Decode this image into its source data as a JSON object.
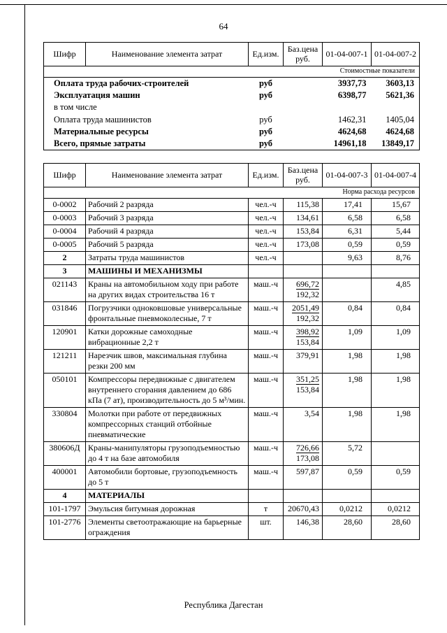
{
  "page": {
    "number": "64",
    "footer": "Республика Дагестан"
  },
  "table1": {
    "headers": [
      "Шифр",
      "Наименование элемента затрат",
      "Ед.изм.",
      "Баз.цена руб.",
      "01-04-007-1",
      "01-04-007-2"
    ],
    "subheader": "Стоимостные показатели",
    "rows": [
      {
        "name": "Оплата труда рабочих-строителей",
        "unit": "руб",
        "v1": "3937,73",
        "v2": "3603,13",
        "bold": true
      },
      {
        "name": "Эксплуатация машин",
        "unit": "руб",
        "v1": "6398,77",
        "v2": "5621,36",
        "bold": true
      },
      {
        "name": "в том числе",
        "unit": "",
        "v1": "",
        "v2": "",
        "bold": false
      },
      {
        "name": "Оплата труда машинистов",
        "unit": "руб",
        "v1": "1462,31",
        "v2": "1405,04",
        "bold": false
      },
      {
        "name": "Материальные ресурсы",
        "unit": "руб",
        "v1": "4624,68",
        "v2": "4624,68",
        "bold": true
      },
      {
        "name": "Всего, прямые затраты",
        "unit": "руб",
        "v1": "14961,18",
        "v2": "13849,17",
        "bold": true
      }
    ]
  },
  "table2": {
    "headers": [
      "Шифр",
      "Наименование элемента затрат",
      "Ед.изм.",
      "Баз.цена руб.",
      "01-04-007-3",
      "01-04-007-4"
    ],
    "subheader": "Норма расхода ресурсов",
    "rows": [
      {
        "code": "0-0002",
        "name": "Рабочий 2 разряда",
        "unit": "чел.-ч",
        "price": "115,38",
        "v1": "17,41",
        "v2": "15,67"
      },
      {
        "code": "0-0003",
        "name": "Рабочий 3 разряда",
        "unit": "чел.-ч",
        "price": "134,61",
        "v1": "6,58",
        "v2": "6,58"
      },
      {
        "code": "0-0004",
        "name": "Рабочий 4 разряда",
        "unit": "чел.-ч",
        "price": "153,84",
        "v1": "6,31",
        "v2": "5,44"
      },
      {
        "code": "0-0005",
        "name": "Рабочий 5 разряда",
        "unit": "чел.-ч",
        "price": "173,08",
        "v1": "0,59",
        "v2": "0,59"
      },
      {
        "code": "2",
        "name": "Затраты труда машинистов",
        "unit": "чел.-ч",
        "price": "",
        "v1": "9,63",
        "v2": "8,76",
        "section": true
      },
      {
        "code": "3",
        "name": "МАШИНЫ И МЕХАНИЗМЫ",
        "unit": "",
        "price": "",
        "v1": "",
        "v2": "",
        "section": true,
        "nameBold": true
      },
      {
        "code": "021143",
        "name": "Краны на автомобильном ходу при работе на других видах строительства 16 т",
        "unit": "маш.-ч",
        "price": "696,72",
        "price2": "192,32",
        "v1": "",
        "v2": "4,85"
      },
      {
        "code": "031846",
        "name": "Погрузчики одноковшовые универсальные фронтальные пневмоколесные, 7 т",
        "unit": "маш.-ч",
        "price": "2051,49",
        "price2": "192,32",
        "v1": "0,84",
        "v2": "0,84"
      },
      {
        "code": "120901",
        "name": "Катки дорожные самоходные вибрационные 2,2 т",
        "unit": "маш.-ч",
        "price": "398,92",
        "price2": "153,84",
        "v1": "1,09",
        "v2": "1,09"
      },
      {
        "code": "121211",
        "name": "Нарезчик швов, максимальная глубина резки 200 мм",
        "unit": "маш.-ч",
        "price": "379,91",
        "v1": "1,98",
        "v2": "1,98"
      },
      {
        "code": "050101",
        "name": "Компрессоры передвижные с двигателем внутреннего сгорания давлением до 686 кПа (7 ат), производительность до 5 м³/мин.",
        "unit": "маш.-ч",
        "price": "351,25",
        "price2": "153,84",
        "v1": "1,98",
        "v2": "1,98"
      },
      {
        "code": "330804",
        "name": "Молотки при работе от передвижных компрессорных станций отбойные пневматические",
        "unit": "маш.-ч",
        "price": "3,54",
        "v1": "1,98",
        "v2": "1,98"
      },
      {
        "code": "380606Д",
        "name": "Краны-манипуляторы грузоподъемностью до 4 т на базе автомобиля",
        "unit": "маш.-ч",
        "price": "726,66",
        "price2": "173,08",
        "v1": "5,72",
        "v2": ""
      },
      {
        "code": "400001",
        "name": "Автомобили бортовые, грузоподъемность до 5 т",
        "unit": "маш.-ч",
        "price": "597,87",
        "v1": "0,59",
        "v2": "0,59"
      },
      {
        "code": "4",
        "name": "МАТЕРИАЛЫ",
        "unit": "",
        "price": "",
        "v1": "",
        "v2": "",
        "section": true,
        "nameBold": true
      },
      {
        "code": "101-1797",
        "name": "Эмульсия битумная дорожная",
        "unit": "т",
        "price": "20670,43",
        "v1": "0,0212",
        "v2": "0,0212"
      },
      {
        "code": "101-2776",
        "name": "Элементы светоотражающие на барьерные ограждения",
        "unit": "шт.",
        "price": "146,38",
        "v1": "28,60",
        "v2": "28,60"
      }
    ]
  }
}
